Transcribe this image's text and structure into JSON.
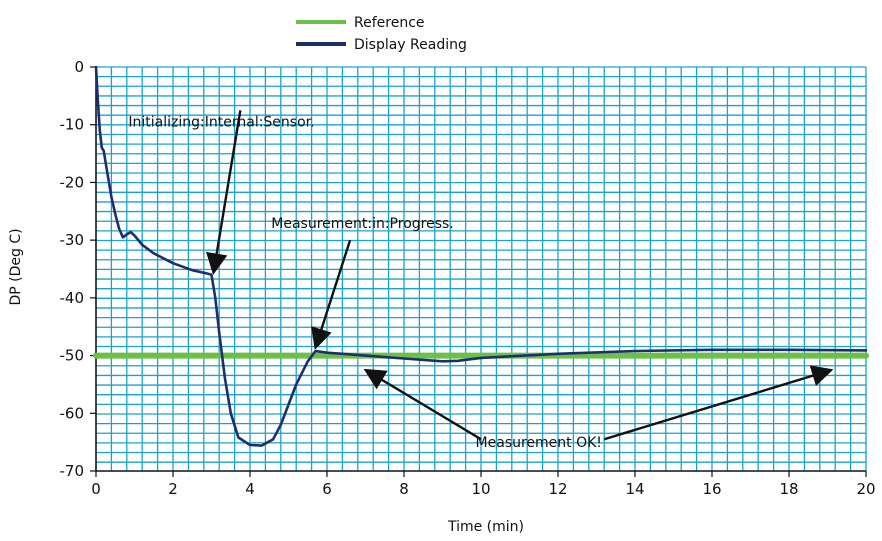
{
  "chart_data": {
    "type": "line",
    "xlabel": "Time (min)",
    "ylabel": "DP (Deg C)",
    "xlim": [
      0,
      20
    ],
    "ylim": [
      -70,
      0
    ],
    "x_ticks": [
      0,
      2,
      4,
      6,
      8,
      10,
      12,
      14,
      16,
      18,
      20
    ],
    "y_ticks": [
      0,
      -10,
      -20,
      -30,
      -40,
      -50,
      -60,
      -70
    ],
    "grid": true,
    "legend": {
      "placement": "top-center"
    },
    "series": [
      {
        "name": "Reference",
        "color": "#6cc04a",
        "points": [
          [
            0,
            -50
          ],
          [
            20,
            -50
          ]
        ]
      },
      {
        "name": "Display Reading",
        "color": "#1b2f6e",
        "points": [
          [
            0.0,
            0
          ],
          [
            0.05,
            -6
          ],
          [
            0.1,
            -11
          ],
          [
            0.15,
            -14
          ],
          [
            0.2,
            -14.5
          ],
          [
            0.3,
            -18.5
          ],
          [
            0.4,
            -22.5
          ],
          [
            0.5,
            -25.5
          ],
          [
            0.6,
            -28
          ],
          [
            0.7,
            -29.5
          ],
          [
            0.8,
            -29
          ],
          [
            0.9,
            -28.6
          ],
          [
            1.0,
            -29.2
          ],
          [
            1.2,
            -30.8
          ],
          [
            1.5,
            -32.3
          ],
          [
            2.0,
            -34
          ],
          [
            2.5,
            -35.2
          ],
          [
            2.9,
            -35.8
          ],
          [
            3.0,
            -36
          ],
          [
            3.1,
            -40
          ],
          [
            3.2,
            -46
          ],
          [
            3.35,
            -54
          ],
          [
            3.5,
            -60
          ],
          [
            3.7,
            -64.2
          ],
          [
            4.0,
            -65.5
          ],
          [
            4.3,
            -65.6
          ],
          [
            4.6,
            -64.5
          ],
          [
            4.8,
            -62
          ],
          [
            5.0,
            -58.5
          ],
          [
            5.2,
            -55
          ],
          [
            5.5,
            -51
          ],
          [
            5.7,
            -49.2
          ],
          [
            6.0,
            -49.5
          ],
          [
            7.0,
            -50
          ],
          [
            8.0,
            -50.5
          ],
          [
            9.0,
            -51
          ],
          [
            9.4,
            -50.9
          ],
          [
            10.0,
            -50.4
          ],
          [
            12.0,
            -49.7
          ],
          [
            14.0,
            -49.2
          ],
          [
            16.0,
            -49.0
          ],
          [
            18.0,
            -49.0
          ],
          [
            20.0,
            -49.1
          ]
        ]
      }
    ],
    "annotations": [
      {
        "text": "Initializing:Internal:Sensor.",
        "x": 3.0,
        "y": -11,
        "arrow_to": [
          3.0,
          -36
        ]
      },
      {
        "text": "Measurement:in:Progress.",
        "x": 4.5,
        "y": -27,
        "arrow_to": [
          5.7,
          -49
        ]
      },
      {
        "text": "Measurement OK!",
        "x": 11.5,
        "y": -65,
        "arrow_to": [
          [
            7.0,
            -52.5
          ],
          [
            19.1,
            -52.5
          ]
        ]
      }
    ]
  }
}
